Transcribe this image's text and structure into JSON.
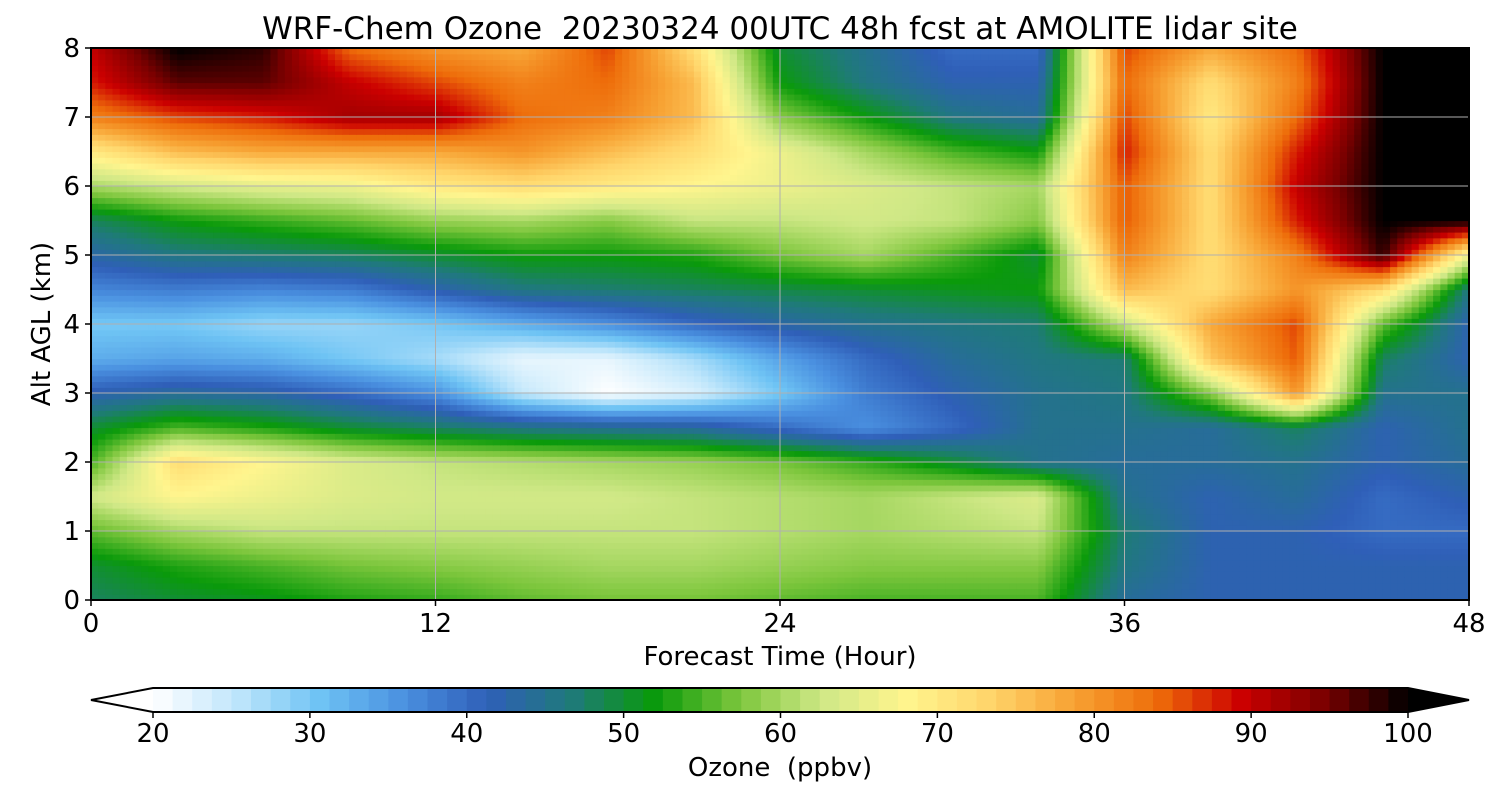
{
  "chart_data": {
    "type": "heatmap",
    "title": "WRF-Chem Ozone  20230324 00UTC 48h fcst at AMOLITE lidar site",
    "xlabel": "Forecast Time (Hour)",
    "ylabel": "Alt AGL (km)",
    "xlim": [
      0,
      48
    ],
    "ylim": [
      0,
      8
    ],
    "x_ticks": [
      "0",
      "12",
      "24",
      "36",
      "48"
    ],
    "y_ticks": [
      "0",
      "1",
      "2",
      "3",
      "4",
      "5",
      "6",
      "7",
      "8"
    ],
    "grid": true,
    "colorbar": {
      "label": "Ozone  (ppbv)",
      "range": [
        20,
        100
      ],
      "extend": "both",
      "ticks": [
        "20",
        "30",
        "40",
        "50",
        "60",
        "70",
        "80",
        "90",
        "100"
      ],
      "colors": [
        "#ffffff",
        "#bfe6fb",
        "#6ec3f4",
        "#4a90e0",
        "#2f5fb8",
        "#1f7a7a",
        "#0a9a0a",
        "#7cc63c",
        "#cfe886",
        "#fff58e",
        "#ffd56b",
        "#f7a233",
        "#ee6d0a",
        "#cc0000",
        "#7a0000",
        "#000000"
      ]
    },
    "hours": [
      0,
      3,
      6,
      9,
      12,
      15,
      18,
      21,
      24,
      27,
      30,
      33,
      36,
      39,
      42,
      45,
      48
    ],
    "altitudes_km": [
      0,
      0.5,
      1,
      1.5,
      2,
      2.5,
      3,
      3.5,
      4,
      4.5,
      5,
      5.5,
      6,
      6.5,
      7,
      7.5,
      8
    ],
    "ozone_ppbv": [
      [
        48,
        50,
        51,
        53,
        54,
        56,
        57,
        57,
        56,
        55,
        55,
        55,
        44,
        42,
        42,
        42,
        42
      ],
      [
        50,
        53,
        55,
        57,
        58,
        59,
        60,
        60,
        59,
        58,
        58,
        58,
        46,
        42,
        42,
        42,
        42
      ],
      [
        56,
        60,
        62,
        62,
        62,
        62,
        62,
        62,
        61,
        60,
        61,
        62,
        47,
        42,
        42,
        40,
        40
      ],
      [
        63,
        68,
        66,
        64,
        63,
        63,
        63,
        62,
        61,
        60,
        62,
        64,
        45,
        42,
        44,
        40,
        42
      ],
      [
        55,
        72,
        68,
        64,
        62,
        61,
        60,
        59,
        57,
        54,
        50,
        45,
        44,
        44,
        45,
        42,
        44
      ],
      [
        50,
        55,
        53,
        50,
        48,
        46,
        45,
        44,
        40,
        36,
        40,
        45,
        45,
        44,
        48,
        42,
        45
      ],
      [
        42,
        44,
        43,
        40,
        36,
        25,
        20,
        23,
        30,
        38,
        42,
        45,
        46,
        58,
        80,
        45,
        45
      ],
      [
        33,
        34,
        33,
        30,
        27,
        22,
        22,
        27,
        34,
        40,
        44,
        46,
        47,
        75,
        85,
        48,
        42
      ],
      [
        30,
        30,
        28,
        28,
        30,
        33,
        36,
        40,
        43,
        45,
        46,
        47,
        62,
        78,
        86,
        56,
        42
      ],
      [
        37,
        38,
        37,
        38,
        42,
        46,
        47,
        48,
        49,
        50,
        51,
        52,
        76,
        72,
        80,
        72,
        46
      ],
      [
        43,
        46,
        47,
        48,
        50,
        52,
        52,
        53,
        57,
        60,
        55,
        50,
        82,
        72,
        82,
        98,
        66
      ],
      [
        48,
        52,
        54,
        56,
        59,
        60,
        58,
        62,
        62,
        63,
        62,
        58,
        85,
        72,
        88,
        100,
        100
      ],
      [
        60,
        63,
        65,
        66,
        70,
        72,
        70,
        68,
        66,
        64,
        62,
        60,
        85,
        72,
        90,
        100,
        100
      ],
      [
        70,
        76,
        78,
        78,
        78,
        80,
        76,
        72,
        66,
        60,
        55,
        52,
        88,
        72,
        88,
        100,
        100
      ],
      [
        82,
        86,
        88,
        92,
        92,
        84,
        82,
        76,
        58,
        52,
        46,
        44,
        86,
        70,
        84,
        100,
        100
      ],
      [
        88,
        96,
        96,
        90,
        86,
        82,
        84,
        76,
        52,
        46,
        42,
        42,
        84,
        72,
        82,
        100,
        100
      ],
      [
        90,
        100,
        98,
        84,
        80,
        78,
        86,
        72,
        50,
        45,
        40,
        40,
        86,
        78,
        84,
        100,
        100
      ]
    ]
  }
}
